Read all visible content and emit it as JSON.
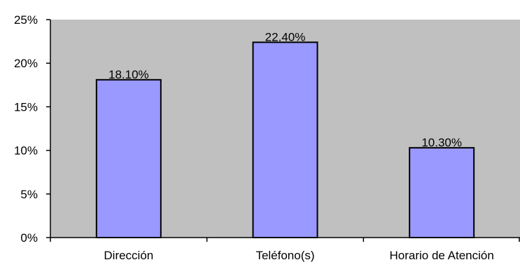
{
  "chart_data": {
    "type": "bar",
    "title": "",
    "xlabel": "",
    "ylabel": "",
    "categories": [
      "Dirección",
      "Teléfono(s)",
      "Horario de Atención"
    ],
    "values": [
      18.1,
      22.4,
      10.3
    ],
    "data_labels": [
      "18.10%",
      "22.40%",
      "10.30%"
    ],
    "ylim": [
      0,
      25
    ],
    "yticks": [
      0,
      5,
      10,
      15,
      20,
      25
    ],
    "ytick_labels": [
      "0%",
      "5%",
      "10%",
      "15%",
      "20%",
      "25%"
    ],
    "grid": false,
    "legend": "none",
    "colors": {
      "plot_background": "#c0c0c0",
      "bar_fill": "#9999ff",
      "bar_stroke": "#000000",
      "axis": "#000000"
    }
  }
}
